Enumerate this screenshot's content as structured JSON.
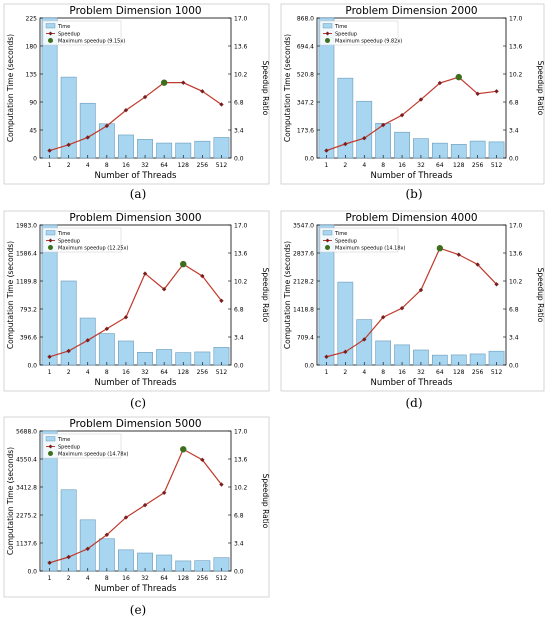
{
  "chart_data": [
    {
      "type": "bar",
      "title": "Problem Dimension 1000",
      "xlabel": "Number of Threads",
      "ylabel": "Computation Time (seconds)",
      "ylabel_right": "Speedup Ratio",
      "categories": [
        "1",
        "2",
        "4",
        "8",
        "16",
        "32",
        "64",
        "128",
        "256",
        "512"
      ],
      "left_ticks": [
        "0",
        "45",
        "90",
        "135",
        "180",
        "225"
      ],
      "right_ticks": [
        "0.0",
        "3.4",
        "6.8",
        "10.2",
        "13.6",
        "17.0"
      ],
      "ylim": [
        0,
        225
      ],
      "y2lim": [
        0,
        17
      ],
      "series": [
        {
          "name": "Time",
          "kind": "bar",
          "color": "#a8d5ef",
          "values": [
            225,
            130,
            88,
            55,
            37,
            30,
            24,
            24,
            27,
            33
          ]
        },
        {
          "name": "Speedup",
          "kind": "line",
          "color": "#c0392b",
          "values": [
            0.9,
            1.6,
            2.5,
            3.9,
            5.8,
            7.4,
            9.15,
            9.15,
            8.1,
            6.5
          ]
        }
      ],
      "max_point": {
        "name": "Maximum speedup (9.15x)",
        "index": 6,
        "value": 9.15,
        "color": "#3c6e1e"
      },
      "legend_position": "top-left",
      "caption": "(a)"
    },
    {
      "type": "bar",
      "title": "Problem Dimension 2000",
      "xlabel": "Number of Threads",
      "ylabel": "Computation Time (seconds)",
      "ylabel_right": "Speedup Ratio",
      "categories": [
        "1",
        "2",
        "4",
        "8",
        "16",
        "32",
        "64",
        "128",
        "256",
        "512"
      ],
      "left_ticks": [
        "0.0",
        "173.6",
        "347.2",
        "520.8",
        "694.4",
        "868.0"
      ],
      "right_ticks": [
        "0.0",
        "3.4",
        "6.8",
        "10.2",
        "13.6",
        "17.0"
      ],
      "ylim": [
        0,
        868
      ],
      "y2lim": [
        0,
        17
      ],
      "series": [
        {
          "name": "Time",
          "kind": "bar",
          "color": "#a8d5ef",
          "values": [
            868,
            495,
            352,
            215,
            160,
            120,
            92,
            85,
            105,
            100
          ]
        },
        {
          "name": "Speedup",
          "kind": "line",
          "color": "#c0392b",
          "values": [
            0.9,
            1.7,
            2.4,
            4.0,
            5.2,
            7.1,
            9.1,
            9.82,
            7.8,
            8.1
          ]
        }
      ],
      "max_point": {
        "name": "Maximum speedup (9.82x)",
        "index": 7,
        "value": 9.82,
        "color": "#3c6e1e"
      },
      "legend_position": "top-left",
      "caption": "(b)"
    },
    {
      "type": "bar",
      "title": "Problem Dimension 3000",
      "xlabel": "Number of Threads",
      "ylabel": "Computation Time (seconds)",
      "ylabel_right": "Speedup Ratio",
      "categories": [
        "1",
        "2",
        "4",
        "8",
        "16",
        "32",
        "64",
        "128",
        "256",
        "512"
      ],
      "left_ticks": [
        "0.0",
        "396.6",
        "793.2",
        "1189.8",
        "1586.4",
        "1983.0"
      ],
      "right_ticks": [
        "0.0",
        "3.4",
        "6.8",
        "10.2",
        "13.6",
        "17.0"
      ],
      "ylim": [
        0,
        1983
      ],
      "y2lim": [
        0,
        17
      ],
      "series": [
        {
          "name": "Time",
          "kind": "bar",
          "color": "#a8d5ef",
          "values": [
            1983,
            1190,
            665,
            445,
            340,
            180,
            220,
            175,
            185,
            250
          ]
        },
        {
          "name": "Speedup",
          "kind": "line",
          "color": "#c0392b",
          "values": [
            1.0,
            1.7,
            3.0,
            4.4,
            5.8,
            11.1,
            9.2,
            12.25,
            10.8,
            7.8
          ]
        }
      ],
      "max_point": {
        "name": "Maximum speedup (12.25x)",
        "index": 7,
        "value": 12.25,
        "color": "#3c6e1e"
      },
      "legend_position": "top-left",
      "caption": "(c)"
    },
    {
      "type": "bar",
      "title": "Problem Dimension 4000",
      "xlabel": "Number of Threads",
      "ylabel": "Computation Time (seconds)",
      "ylabel_right": "Speedup Ratio",
      "categories": [
        "1",
        "2",
        "4",
        "8",
        "16",
        "32",
        "64",
        "128",
        "256",
        "512"
      ],
      "left_ticks": [
        "0.0",
        "709.4",
        "1418.8",
        "2128.2",
        "2837.6",
        "3547.0"
      ],
      "right_ticks": [
        "0.0",
        "3.4",
        "6.8",
        "10.2",
        "13.6",
        "17.0"
      ],
      "ylim": [
        0,
        3547
      ],
      "y2lim": [
        0,
        17
      ],
      "series": [
        {
          "name": "Time",
          "kind": "bar",
          "color": "#a8d5ef",
          "values": [
            3547,
            2100,
            1150,
            610,
            510,
            380,
            250,
            255,
            280,
            350
          ]
        },
        {
          "name": "Speedup",
          "kind": "line",
          "color": "#c0392b",
          "values": [
            1.0,
            1.6,
            3.1,
            5.8,
            6.9,
            9.1,
            14.18,
            13.4,
            12.2,
            9.8
          ]
        }
      ],
      "max_point": {
        "name": "Maximum speedup (14.18x)",
        "index": 6,
        "value": 14.18,
        "color": "#3c6e1e"
      },
      "legend_position": "top-left",
      "caption": "(d)"
    },
    {
      "type": "bar",
      "title": "Problem Dimension 5000",
      "xlabel": "Number of Threads",
      "ylabel": "Computation Time (seconds)",
      "ylabel_right": "Speedup Ratio",
      "categories": [
        "1",
        "2",
        "4",
        "8",
        "16",
        "32",
        "64",
        "128",
        "256",
        "512"
      ],
      "left_ticks": [
        "0.0",
        "1137.6",
        "2275.2",
        "3412.8",
        "4550.4",
        "5688.0"
      ],
      "right_ticks": [
        "0.0",
        "3.4",
        "6.8",
        "10.2",
        "13.6",
        "17.0"
      ],
      "ylim": [
        0,
        5688
      ],
      "y2lim": [
        0,
        17
      ],
      "series": [
        {
          "name": "Time",
          "kind": "bar",
          "color": "#a8d5ef",
          "values": [
            5688,
            3300,
            2080,
            1310,
            860,
            730,
            650,
            410,
            420,
            540
          ]
        },
        {
          "name": "Speedup",
          "kind": "line",
          "color": "#c0392b",
          "values": [
            1.0,
            1.7,
            2.7,
            4.4,
            6.5,
            8.0,
            9.5,
            14.78,
            13.5,
            10.5
          ]
        }
      ],
      "max_point": {
        "name": "Maximum speedup (14.78x)",
        "index": 7,
        "value": 14.78,
        "color": "#3c6e1e"
      },
      "legend_position": "top-left",
      "caption": "(e)"
    }
  ]
}
